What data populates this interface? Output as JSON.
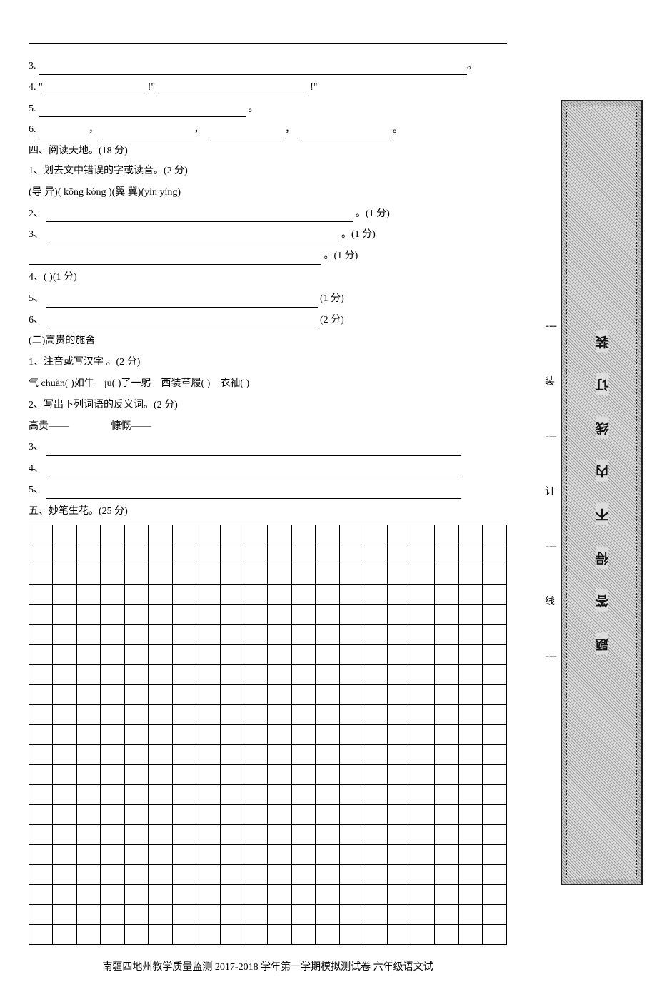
{
  "q3": {
    "num": "3."
  },
  "q4": {
    "num": "4. \"",
    "mid": "!\"",
    "end": "!\""
  },
  "q5": {
    "num": "5.",
    "end": "。"
  },
  "q6": {
    "num": "6.",
    "end": "。"
  },
  "section4": {
    "title": "四、阅读天地。(18 分)",
    "item1": "1、划去文中错误的字或读音。(2 分)",
    "item1_content": "(导 异)( kōng kòng )(翼 冀)(yín yíng)",
    "item2": {
      "num": "2、",
      "end": "。(1 分)"
    },
    "item3": {
      "num": "3、",
      "end": "。(1 分)",
      "end2": "。(1 分)"
    },
    "item4": "4、(        )(1 分)",
    "item5": {
      "num": "5、",
      "end": "(1 分)"
    },
    "item6": {
      "num": "6、",
      "end": "(2 分)"
    }
  },
  "part2": {
    "title": "(二)高贵的施舍",
    "item1": "1、注音或写汉字 。(2 分)",
    "item1_content_a": "气 chuǎn(        )如牛",
    "item1_content_b": "jū(        )了一躬",
    "item1_content_c": "西装革履(        )",
    "item1_content_d": "衣袖(            )",
    "item2": "2、写出下列词语的反义词。(2 分)",
    "item2_a": "高贵——",
    "item2_b": "慷慨——",
    "item3": "3、",
    "item4": "4、",
    "item5": "5、"
  },
  "section5": {
    "title": "五、妙笔生花。(25 分)",
    "rows": 21,
    "cols": 20
  },
  "footer": "南疆四地州教学质量监测 2017-2018 学年第一学期模拟测试卷    六年级语文试",
  "binding": {
    "outer": [
      "装",
      "订",
      "线"
    ],
    "inner": [
      "装",
      "订",
      "线",
      "内",
      "不",
      "得",
      "答",
      "题"
    ]
  },
  "colors": {
    "text": "#000000",
    "bg": "#ffffff",
    "border": "#000000"
  }
}
